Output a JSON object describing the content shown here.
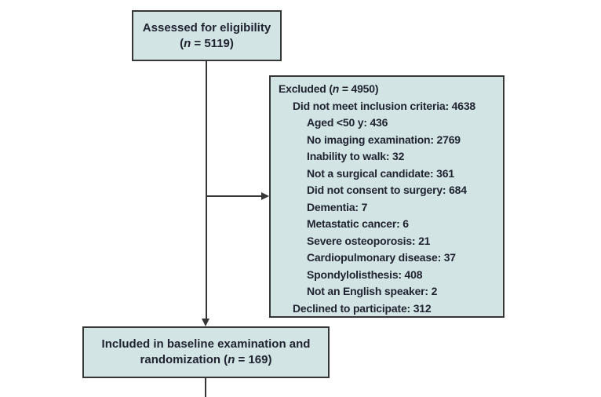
{
  "colors": {
    "box_fill": "#d3e4e5",
    "box_border": "#363636",
    "text": "#202430",
    "line": "#363636",
    "background": "#ffffff"
  },
  "boxes": {
    "assessed": {
      "line1": "Assessed for eligibility",
      "n_pre": "(",
      "n_italic": "n",
      "n_post": " = 5119)"
    },
    "excluded": {
      "header_pre": "Excluded (",
      "header_n": "n",
      "header_post": " = 4950)",
      "items": [
        {
          "label": "Did not meet inclusion criteria: 4638",
          "indent": 1
        },
        {
          "label": "Aged <50 y: 436",
          "indent": 2
        },
        {
          "label": "No imaging examination: 2769",
          "indent": 2
        },
        {
          "label": "Inability to walk: 32",
          "indent": 2
        },
        {
          "label": "Not a surgical candidate: 361",
          "indent": 2
        },
        {
          "label": "Did not consent to surgery: 684",
          "indent": 2
        },
        {
          "label": "Dementia: 7",
          "indent": 2
        },
        {
          "label": "Metastatic cancer: 6",
          "indent": 2
        },
        {
          "label": "Severe osteoporosis: 21",
          "indent": 2
        },
        {
          "label": "Cardiopulmonary disease: 37",
          "indent": 2
        },
        {
          "label": "Spondylolisthesis: 408",
          "indent": 2
        },
        {
          "label": "Not an English speaker: 2",
          "indent": 2
        },
        {
          "label": "Declined to participate: 312",
          "indent": 1
        }
      ]
    },
    "included": {
      "line1": "Included in baseline examination and",
      "line2_pre": "randomization (",
      "n_italic": "n",
      "line2_post": " = 169)"
    }
  }
}
